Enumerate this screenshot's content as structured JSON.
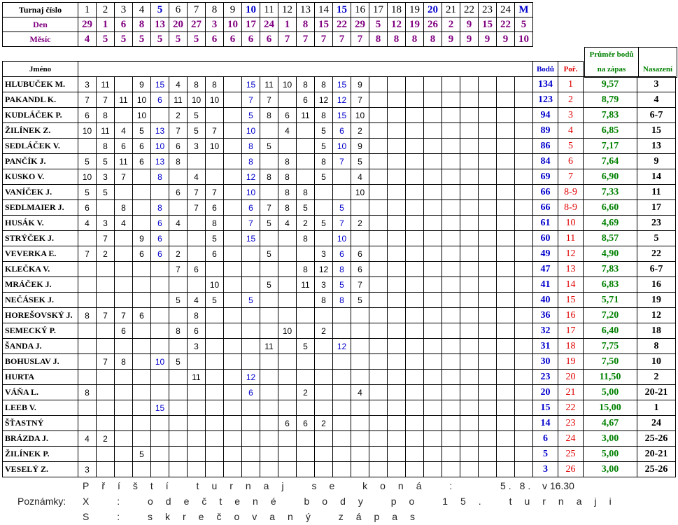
{
  "header": {
    "row_labels": [
      "Turnaj číslo",
      "Den",
      "Měsíc"
    ],
    "tournaments": [
      1,
      2,
      3,
      4,
      5,
      6,
      7,
      8,
      9,
      10,
      11,
      12,
      13,
      14,
      15,
      16,
      17,
      18,
      19,
      20,
      21,
      22,
      23,
      24,
      "M"
    ],
    "days": [
      29,
      1,
      6,
      8,
      13,
      20,
      27,
      3,
      10,
      17,
      24,
      1,
      8,
      15,
      22,
      29,
      5,
      12,
      19,
      26,
      2,
      9,
      15,
      22,
      5
    ],
    "months": [
      4,
      5,
      5,
      5,
      5,
      5,
      5,
      6,
      6,
      6,
      6,
      7,
      7,
      7,
      7,
      7,
      8,
      8,
      8,
      8,
      9,
      9,
      9,
      9,
      10
    ]
  },
  "table": {
    "columns": {
      "name": "Jméno",
      "points": "Bodů",
      "rank": "Poř.",
      "average": "Průměr bodů na zápas",
      "seed": "Nasazení"
    },
    "rows": [
      {
        "name": "HLUBUČEK M.",
        "results": [
          3,
          11,
          null,
          9,
          15,
          4,
          8,
          8,
          null,
          15,
          11,
          10,
          8,
          8,
          15,
          9,
          null,
          null,
          null,
          null,
          null,
          null,
          null,
          null,
          null
        ],
        "points": 134,
        "rank": "1",
        "average": "9,57",
        "seed": "3"
      },
      {
        "name": "PAKANDL K.",
        "results": [
          7,
          7,
          11,
          10,
          6,
          11,
          10,
          10,
          null,
          7,
          7,
          null,
          6,
          12,
          12,
          7,
          null,
          null,
          null,
          null,
          null,
          null,
          null,
          null,
          null
        ],
        "points": 123,
        "rank": "2",
        "average": "8,79",
        "seed": "4"
      },
      {
        "name": "KUDLÁČEK P.",
        "results": [
          6,
          8,
          null,
          10,
          null,
          2,
          5,
          null,
          null,
          5,
          8,
          6,
          11,
          8,
          15,
          10,
          null,
          null,
          null,
          null,
          null,
          null,
          null,
          null,
          null
        ],
        "points": 94,
        "rank": "3",
        "average": "7,83",
        "seed": "6-7"
      },
      {
        "name": "ŽILÍNEK Z.",
        "results": [
          10,
          11,
          4,
          5,
          13,
          7,
          5,
          7,
          null,
          10,
          null,
          4,
          null,
          5,
          6,
          2,
          null,
          null,
          null,
          null,
          null,
          null,
          null,
          null,
          null
        ],
        "points": 89,
        "rank": "4",
        "average": "6,85",
        "seed": "15"
      },
      {
        "name": "SEDLÁČEK V.",
        "results": [
          null,
          8,
          6,
          6,
          10,
          6,
          3,
          10,
          null,
          8,
          5,
          null,
          null,
          5,
          10,
          9,
          null,
          null,
          null,
          null,
          null,
          null,
          null,
          null,
          null
        ],
        "points": 86,
        "rank": "5",
        "average": "7,17",
        "seed": "13"
      },
      {
        "name": "PANČÍK J.",
        "results": [
          5,
          5,
          11,
          6,
          13,
          8,
          null,
          null,
          null,
          8,
          null,
          8,
          null,
          8,
          7,
          5,
          null,
          null,
          null,
          null,
          null,
          null,
          null,
          null,
          null
        ],
        "points": 84,
        "rank": "6",
        "average": "7,64",
        "seed": "9"
      },
      {
        "name": "KUSKO V.",
        "results": [
          10,
          3,
          7,
          null,
          8,
          null,
          4,
          null,
          null,
          12,
          8,
          8,
          null,
          5,
          null,
          4,
          null,
          null,
          null,
          null,
          null,
          null,
          null,
          null,
          null
        ],
        "points": 69,
        "rank": "7",
        "average": "6,90",
        "seed": "14"
      },
      {
        "name": "VANÍČEK J.",
        "results": [
          5,
          5,
          null,
          null,
          null,
          6,
          7,
          7,
          null,
          10,
          null,
          8,
          8,
          null,
          null,
          10,
          null,
          null,
          null,
          null,
          null,
          null,
          null,
          null,
          null
        ],
        "points": 66,
        "rank": "8-9",
        "average": "7,33",
        "seed": "11"
      },
      {
        "name": "SEDLMAIER J.",
        "results": [
          6,
          null,
          8,
          null,
          8,
          null,
          7,
          6,
          null,
          6,
          7,
          8,
          5,
          null,
          5,
          null,
          null,
          null,
          null,
          null,
          null,
          null,
          null,
          null,
          null
        ],
        "points": 66,
        "rank": "8-9",
        "average": "6,60",
        "seed": "17"
      },
      {
        "name": "HUSÁK V.",
        "results": [
          4,
          3,
          4,
          null,
          6,
          4,
          null,
          8,
          null,
          7,
          5,
          4,
          2,
          5,
          7,
          2,
          null,
          null,
          null,
          null,
          null,
          null,
          null,
          null,
          null
        ],
        "points": 61,
        "rank": "10",
        "average": "4,69",
        "seed": "23"
      },
      {
        "name": "STRÝČEK J.",
        "results": [
          null,
          7,
          null,
          9,
          6,
          null,
          null,
          5,
          null,
          15,
          null,
          null,
          8,
          null,
          10,
          null,
          null,
          null,
          null,
          null,
          null,
          null,
          null,
          null,
          null
        ],
        "points": 60,
        "rank": "11",
        "average": "8,57",
        "seed": "5"
      },
      {
        "name": "VEVERKA E.",
        "results": [
          7,
          2,
          null,
          6,
          6,
          2,
          null,
          6,
          null,
          null,
          5,
          null,
          null,
          3,
          6,
          6,
          null,
          null,
          null,
          null,
          null,
          null,
          null,
          null,
          null
        ],
        "points": 49,
        "rank": "12",
        "average": "4,90",
        "seed": "22"
      },
      {
        "name": "KLEČKA V.",
        "results": [
          null,
          null,
          null,
          null,
          null,
          7,
          6,
          null,
          null,
          null,
          null,
          null,
          8,
          12,
          8,
          6,
          null,
          null,
          null,
          null,
          null,
          null,
          null,
          null,
          null
        ],
        "points": 47,
        "rank": "13",
        "average": "7,83",
        "seed": "6-7"
      },
      {
        "name": "MRÁČEK  J.",
        "results": [
          null,
          null,
          null,
          null,
          null,
          null,
          null,
          10,
          null,
          null,
          5,
          null,
          11,
          3,
          5,
          7,
          null,
          null,
          null,
          null,
          null,
          null,
          null,
          null,
          null
        ],
        "points": 41,
        "rank": "14",
        "average": "6,83",
        "seed": "16"
      },
      {
        "name": "NEČÁSEK J.",
        "results": [
          null,
          null,
          null,
          null,
          null,
          5,
          4,
          5,
          null,
          5,
          null,
          null,
          null,
          8,
          8,
          5,
          null,
          null,
          null,
          null,
          null,
          null,
          null,
          null,
          null
        ],
        "points": 40,
        "rank": "15",
        "average": "5,71",
        "seed": "19"
      },
      {
        "name": "HOREŠOVSKÝ J.",
        "results": [
          8,
          7,
          7,
          6,
          null,
          null,
          8,
          null,
          null,
          null,
          null,
          null,
          null,
          null,
          null,
          null,
          null,
          null,
          null,
          null,
          null,
          null,
          null,
          null,
          null
        ],
        "points": 36,
        "rank": "16",
        "average": "7,20",
        "seed": "12"
      },
      {
        "name": "SEMECKÝ P.",
        "results": [
          null,
          null,
          6,
          null,
          null,
          8,
          6,
          null,
          null,
          null,
          null,
          10,
          null,
          2,
          null,
          null,
          null,
          null,
          null,
          null,
          null,
          null,
          null,
          null,
          null
        ],
        "points": 32,
        "rank": "17",
        "average": "6,40",
        "seed": "18"
      },
      {
        "name": "ŠANDA J.",
        "results": [
          null,
          null,
          null,
          null,
          null,
          null,
          3,
          null,
          null,
          null,
          11,
          null,
          5,
          null,
          12,
          null,
          null,
          null,
          null,
          null,
          null,
          null,
          null,
          null,
          null
        ],
        "points": 31,
        "rank": "18",
        "average": "7,75",
        "seed": "8"
      },
      {
        "name": "BOHUSLAV J.",
        "results": [
          null,
          7,
          8,
          null,
          10,
          5,
          null,
          null,
          null,
          null,
          null,
          null,
          null,
          null,
          null,
          null,
          null,
          null,
          null,
          null,
          null,
          null,
          null,
          null,
          null
        ],
        "points": 30,
        "rank": "19",
        "average": "7,50",
        "seed": "10"
      },
      {
        "name": "HURTA",
        "results": [
          null,
          null,
          null,
          null,
          null,
          null,
          11,
          null,
          null,
          12,
          null,
          null,
          null,
          null,
          null,
          null,
          null,
          null,
          null,
          null,
          null,
          null,
          null,
          null,
          null
        ],
        "points": 23,
        "rank": "20",
        "average": "11,50",
        "seed": "2"
      },
      {
        "name": "VÁŇA L.",
        "results": [
          8,
          null,
          null,
          null,
          null,
          null,
          null,
          null,
          null,
          6,
          null,
          null,
          2,
          null,
          null,
          4,
          null,
          null,
          null,
          null,
          null,
          null,
          null,
          null,
          null
        ],
        "points": 20,
        "rank": "21",
        "average": "5,00",
        "seed": "20-21"
      },
      {
        "name": "LEEB V.",
        "results": [
          null,
          null,
          null,
          null,
          15,
          null,
          null,
          null,
          null,
          null,
          null,
          null,
          null,
          null,
          null,
          null,
          null,
          null,
          null,
          null,
          null,
          null,
          null,
          null,
          null
        ],
        "points": 15,
        "rank": "22",
        "average": "15,00",
        "seed": "1"
      },
      {
        "name": "ŠŤASTNÝ",
        "results": [
          null,
          null,
          null,
          null,
          null,
          null,
          null,
          null,
          null,
          null,
          null,
          6,
          6,
          2,
          null,
          null,
          null,
          null,
          null,
          null,
          null,
          null,
          null,
          null,
          null
        ],
        "points": 14,
        "rank": "23",
        "average": "4,67",
        "seed": "24"
      },
      {
        "name": "BRÁZDA J.",
        "results": [
          4,
          2,
          null,
          null,
          null,
          null,
          null,
          null,
          null,
          null,
          null,
          null,
          null,
          null,
          null,
          null,
          null,
          null,
          null,
          null,
          null,
          null,
          null,
          null,
          null
        ],
        "points": 6,
        "rank": "24",
        "average": "3,00",
        "seed": "25-26"
      },
      {
        "name": "ŽILÍNEK P.",
        "results": [
          null,
          null,
          null,
          5,
          null,
          null,
          null,
          null,
          null,
          null,
          null,
          null,
          null,
          null,
          null,
          null,
          null,
          null,
          null,
          null,
          null,
          null,
          null,
          null,
          null
        ],
        "points": 5,
        "rank": "25",
        "average": "5,00",
        "seed": "20-21"
      },
      {
        "name": "VESELÝ Z.",
        "results": [
          3,
          null,
          null,
          null,
          null,
          null,
          null,
          null,
          null,
          null,
          null,
          null,
          null,
          null,
          null,
          null,
          null,
          null,
          null,
          null,
          null,
          null,
          null,
          null,
          null
        ],
        "points": 3,
        "rank": "26",
        "average": "3,00",
        "seed": "25-26"
      }
    ]
  },
  "footer": {
    "next_label": "Příští turnaj se koná :",
    "next_date": "5. 8.",
    "next_time": "v 16.30",
    "notes_label": "Poznámky:",
    "notes": [
      "X : odečtené body po 15. turnaji",
      "S : skrečovaný zápas"
    ]
  }
}
